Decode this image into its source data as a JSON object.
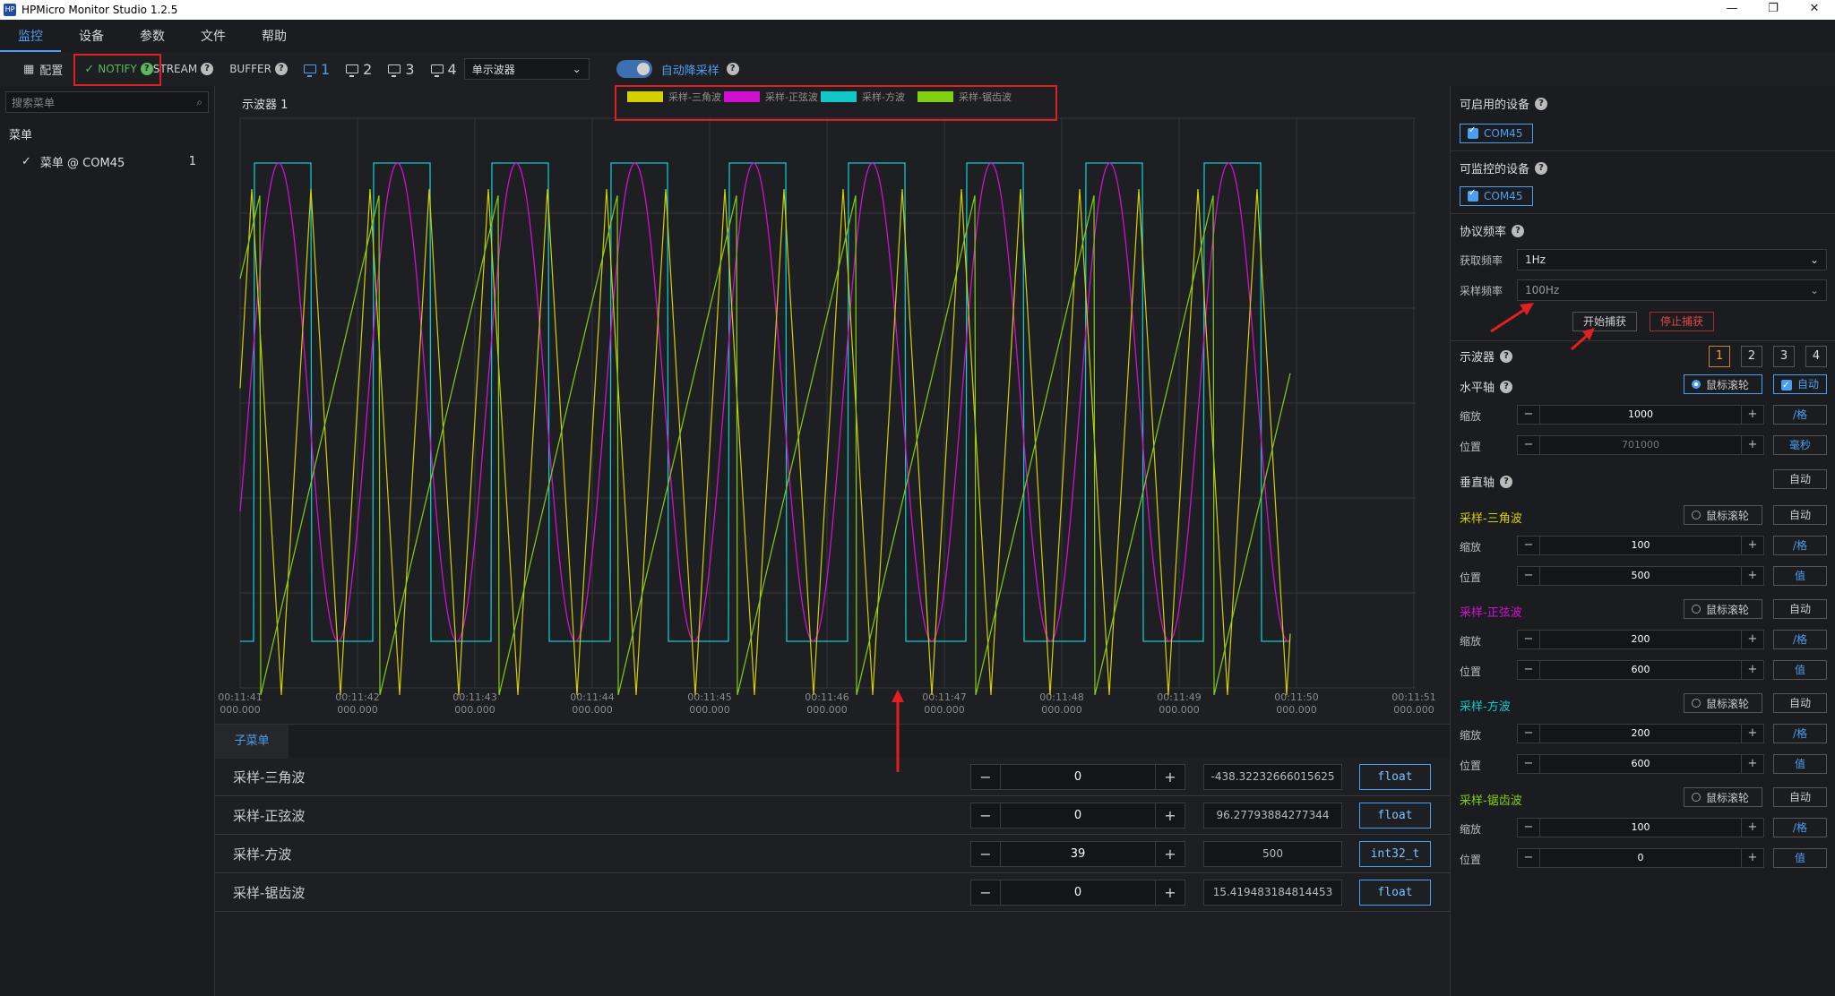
{
  "window": {
    "title": "HPMicro Monitor Studio 1.2.5",
    "controls": [
      "—",
      "❐",
      "✕"
    ]
  },
  "menu": [
    "监控",
    "设备",
    "参数",
    "文件",
    "帮助"
  ],
  "toolbar": {
    "config": "配置",
    "notify": "NOTIFY",
    "stream": "STREAM",
    "buffer": "BUFFER",
    "screens": [
      "1",
      "2",
      "3",
      "4"
    ],
    "mode_select": "单示波器",
    "auto_down_sample": "自动降采样"
  },
  "left": {
    "search_placeholder": "搜索菜单",
    "tree_title": "菜单",
    "tree_item": "菜单 @ COM45",
    "tree_count": "1"
  },
  "chart": {
    "title": "示波器 1",
    "legend": [
      {
        "name": "采样-三角波",
        "color": "#d4d000"
      },
      {
        "name": "采样-正弦波",
        "color": "#d010d0"
      },
      {
        "name": "采样-方波",
        "color": "#10c8c8"
      },
      {
        "name": "采样-锯齿波",
        "color": "#80d010"
      }
    ],
    "x_ticks": [
      {
        "t": "00:11:41",
        "ms": "000.000"
      },
      {
        "t": "00:11:42",
        "ms": "000.000"
      },
      {
        "t": "00:11:43",
        "ms": "000.000"
      },
      {
        "t": "00:11:44",
        "ms": "000.000"
      },
      {
        "t": "00:11:45",
        "ms": "000.000"
      },
      {
        "t": "00:11:46",
        "ms": "000.000"
      },
      {
        "t": "00:11:47",
        "ms": "000.000"
      },
      {
        "t": "00:11:48",
        "ms": "000.000"
      },
      {
        "t": "00:11:49",
        "ms": "000.000"
      },
      {
        "t": "00:11:50",
        "ms": "000.000"
      },
      {
        "t": "00:11:51",
        "ms": "000.000"
      }
    ]
  },
  "submenu": {
    "tab": "子菜单",
    "rows": [
      {
        "name": "采样-三角波",
        "value": "0",
        "readout": "-438.32232666015625",
        "type": "float"
      },
      {
        "name": "采样-正弦波",
        "value": "0",
        "readout": "96.27793884277344",
        "type": "float"
      },
      {
        "name": "采样-方波",
        "value": "39",
        "readout": "500",
        "type": "int32_t"
      },
      {
        "name": "采样-锯齿波",
        "value": "0",
        "readout": "15.419483184814453",
        "type": "float"
      }
    ]
  },
  "right": {
    "available_devices": "可启用的设备",
    "monitorable_devices": "可监控的设备",
    "device": "COM45",
    "protocol_freq": "协议频率",
    "fetch_freq_label": "获取频率",
    "fetch_freq": "1Hz",
    "sample_freq_label": "采样频率",
    "sample_freq": "100Hz",
    "start_capture": "开始捕获",
    "stop_capture": "停止捕获",
    "scope": "示波器",
    "scope_nums": [
      "1",
      "2",
      "3",
      "4"
    ],
    "h_axis": "水平轴",
    "mouse_wheel": "鼠标滚轮",
    "auto": "自动",
    "zoom": "缩放",
    "position": "位置",
    "h_zoom": "1000",
    "h_zoom_unit": "/格",
    "h_pos": "701000",
    "h_pos_unit": "毫秒",
    "v_axis": "垂直轴",
    "value_unit": "值",
    "channels": [
      {
        "name": "采样-三角波",
        "color": "#d4d000",
        "zoom": "100",
        "pos": "500"
      },
      {
        "name": "采样-正弦波",
        "color": "#d010d0",
        "zoom": "200",
        "pos": "600"
      },
      {
        "name": "采样-方波",
        "color": "#10c8c8",
        "zoom": "200",
        "pos": "600"
      },
      {
        "name": "采样-锯齿波",
        "color": "#80d010",
        "zoom": "100",
        "pos": "0"
      }
    ]
  }
}
